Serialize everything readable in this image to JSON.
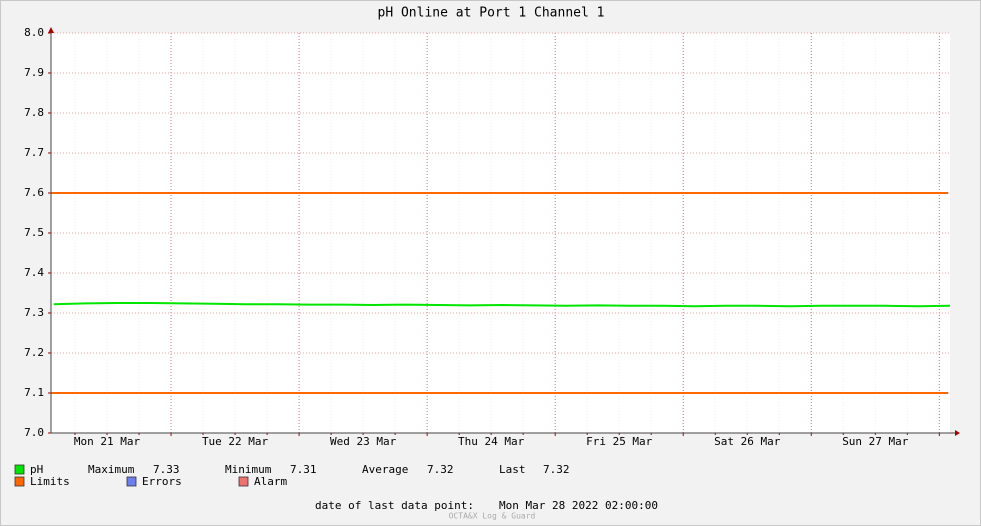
{
  "chart_data": {
    "type": "line",
    "title": "pH Online at Port 1 Channel 1",
    "x": [
      "2022-03-21 02:00",
      "2022-03-21 08:00",
      "2022-03-21 14:00",
      "2022-03-21 20:00",
      "2022-03-22 02:00",
      "2022-03-22 08:00",
      "2022-03-22 14:00",
      "2022-03-22 20:00",
      "2022-03-23 02:00",
      "2022-03-23 08:00",
      "2022-03-23 14:00",
      "2022-03-23 20:00",
      "2022-03-24 02:00",
      "2022-03-24 08:00",
      "2022-03-24 14:00",
      "2022-03-24 20:00",
      "2022-03-25 02:00",
      "2022-03-25 08:00",
      "2022-03-25 14:00",
      "2022-03-25 20:00",
      "2022-03-26 02:00",
      "2022-03-26 08:00",
      "2022-03-26 14:00",
      "2022-03-26 20:00",
      "2022-03-27 02:00",
      "2022-03-27 08:00",
      "2022-03-27 14:00",
      "2022-03-27 20:00",
      "2022-03-28 02:00"
    ],
    "series": [
      {
        "name": "pH",
        "color": "#00e600",
        "values": [
          7.322,
          7.324,
          7.325,
          7.325,
          7.324,
          7.323,
          7.322,
          7.322,
          7.321,
          7.321,
          7.32,
          7.321,
          7.32,
          7.319,
          7.32,
          7.319,
          7.318,
          7.319,
          7.318,
          7.318,
          7.317,
          7.318,
          7.318,
          7.317,
          7.318,
          7.318,
          7.318,
          7.317,
          7.318
        ]
      }
    ],
    "limits": {
      "name": "Limits",
      "color": "#ff6600",
      "values": [
        7.1,
        7.6
      ]
    },
    "other_legend": [
      {
        "name": "Errors",
        "color": "#6a7ff0"
      },
      {
        "name": "Alarm",
        "color": "#f07070"
      }
    ],
    "stats": [
      {
        "label": "Maximum",
        "value": 7.33
      },
      {
        "label": "Minimum",
        "value": 7.31
      },
      {
        "label": "Average",
        "value": 7.32
      },
      {
        "label": "Last",
        "value": 7.32
      }
    ],
    "xlim": [
      "2022-03-21 01:30",
      "2022-03-28 02:00"
    ],
    "xticks": [
      {
        "value": "2022-03-21 12:00",
        "label": "Mon 21 Mar"
      },
      {
        "value": "2022-03-22 12:00",
        "label": "Tue 22 Mar"
      },
      {
        "value": "2022-03-23 12:00",
        "label": "Wed 23 Mar"
      },
      {
        "value": "2022-03-24 12:00",
        "label": "Thu 24 Mar"
      },
      {
        "value": "2022-03-25 12:00",
        "label": "Fri 25 Mar"
      },
      {
        "value": "2022-03-26 12:00",
        "label": "Sat 26 Mar"
      },
      {
        "value": "2022-03-27 12:00",
        "label": "Sun 27 Mar"
      }
    ],
    "ylim": [
      7.0,
      8.0
    ],
    "yticks": [
      {
        "value": 7.0,
        "label": "7.0"
      },
      7.1,
      7.2,
      7.3,
      7.4,
      7.5,
      7.6,
      7.7,
      7.8,
      7.9,
      {
        "value": 8.0,
        "label": "8.0"
      }
    ],
    "grid": true,
    "footer_label": "date of last data point:",
    "footer_date": "Mon Mar 28 2022 02:00:00",
    "watermark": "OCTA&X Log & Guard"
  }
}
